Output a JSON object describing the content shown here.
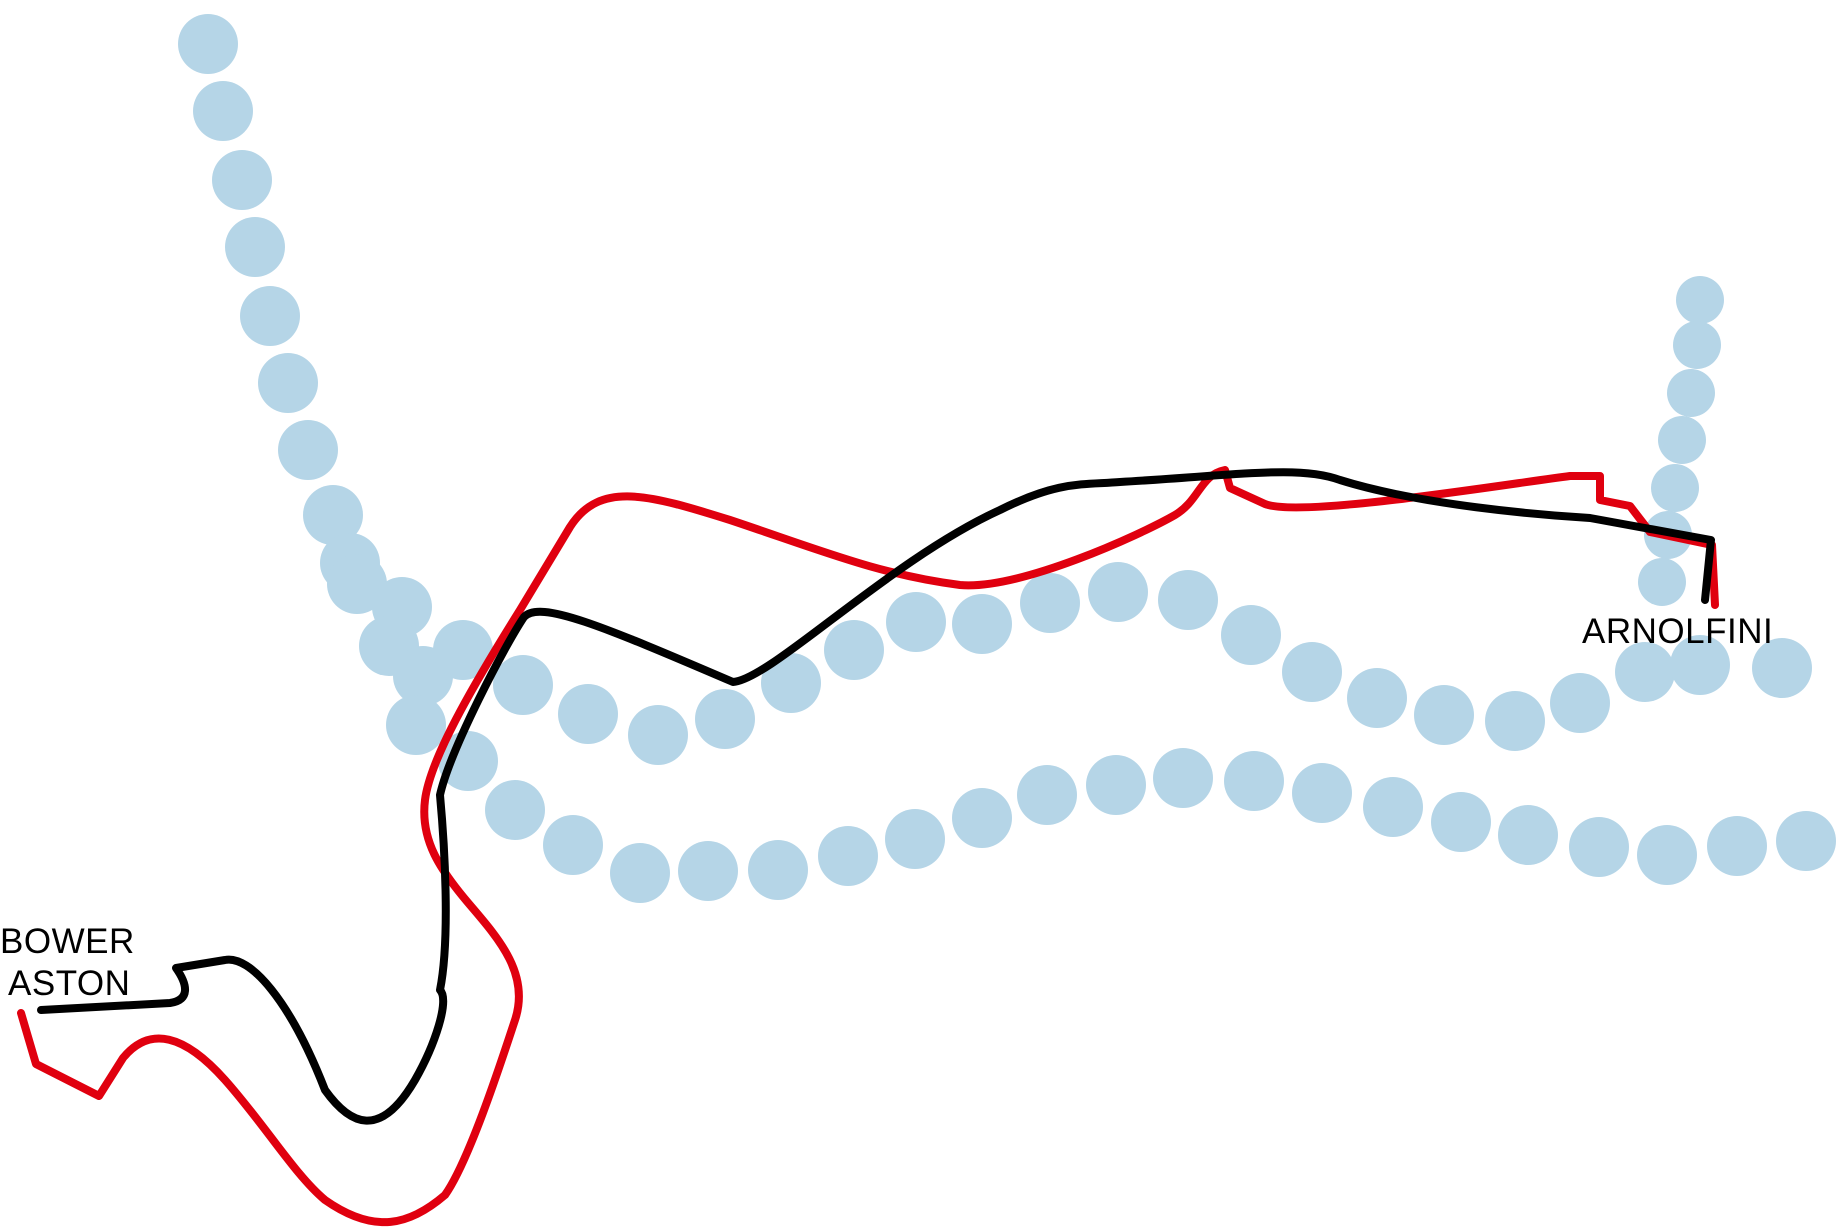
{
  "map": {
    "colors": {
      "water": "#b5d5e7",
      "route_red": "#e0000f",
      "route_black": "#000000",
      "label": "#000000"
    },
    "labels": {
      "start_line1": "BOWER",
      "start_line2": "ASTON",
      "end": "ARNOLFINI"
    },
    "routes": [
      {
        "color": "red"
      },
      {
        "color": "black"
      }
    ]
  }
}
